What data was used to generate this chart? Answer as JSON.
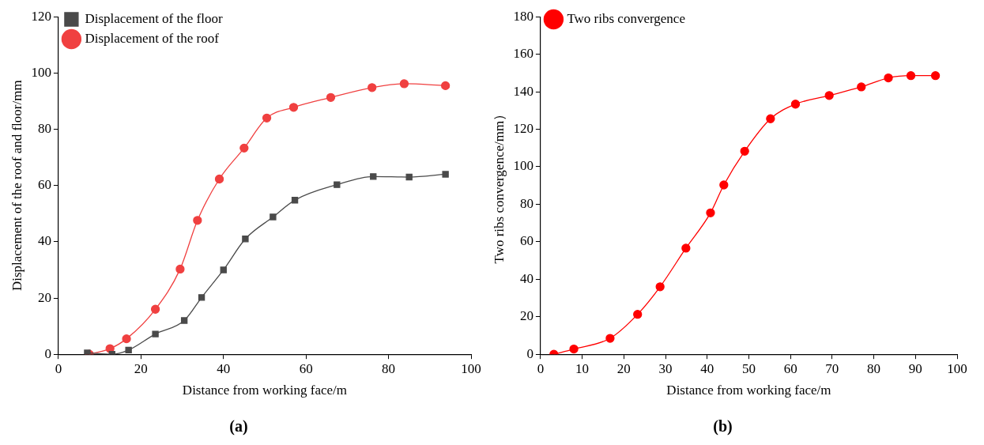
{
  "chart_data": [
    {
      "type": "line",
      "title": "(a)",
      "xlabel": "Distance from working face/m",
      "ylabel": "Displacement of the roof and floor/mm",
      "xlim": [
        0,
        100
      ],
      "xticks": [
        0,
        20,
        40,
        60,
        80,
        100
      ],
      "ylim": [
        0,
        120
      ],
      "yticks": [
        0,
        20,
        40,
        60,
        80,
        100,
        120
      ],
      "grid": false,
      "legend": "top left",
      "series": [
        {
          "name": "Displacement of the floor",
          "color": "#4a4a4a",
          "marker": "square",
          "x": [
            7,
            13,
            17,
            23.5,
            30.5,
            34.7,
            40,
            45.3,
            52,
            57.3,
            67.5,
            76.3,
            85,
            93.8
          ],
          "values": [
            0.5,
            0,
            1.5,
            7.2,
            12,
            20.2,
            30,
            41,
            48.8,
            54.8,
            60.3,
            63.2,
            63,
            64
          ]
        },
        {
          "name": "Displacement of the roof",
          "color": "#f04040",
          "marker": "circle",
          "x": [
            7.5,
            12.5,
            16.5,
            23.5,
            29.5,
            33.7,
            39,
            45,
            50.5,
            57,
            66,
            76,
            83.8,
            93.8
          ],
          "values": [
            0,
            2,
            5.5,
            16,
            30.3,
            47.6,
            62.3,
            73.3,
            84,
            87.8,
            91.3,
            94.8,
            96.2,
            95.5
          ]
        }
      ]
    },
    {
      "type": "line",
      "title": "(b)",
      "xlabel": "Distance from working face/m",
      "ylabel": "Two ribs convergence/mm）",
      "xlim": [
        0,
        100
      ],
      "xticks": [
        0,
        10,
        20,
        30,
        40,
        50,
        60,
        70,
        80,
        90,
        100
      ],
      "ylim": [
        0,
        180
      ],
      "yticks": [
        0,
        20,
        40,
        60,
        80,
        100,
        120,
        140,
        160,
        180
      ],
      "grid": false,
      "legend": "top left",
      "series": [
        {
          "name": "Two ribs convergence",
          "color": "#ff0000",
          "marker": "circle",
          "x": [
            3.2,
            8,
            16.7,
            23.3,
            28.7,
            34.9,
            40.8,
            44,
            49,
            55.2,
            61.2,
            69.3,
            77,
            83.5,
            88.9,
            94.8
          ],
          "values": [
            0,
            2.8,
            8.5,
            21.3,
            36,
            56.6,
            75.4,
            90.3,
            108.3,
            125.6,
            133.4,
            138,
            142.6,
            147.4,
            148.6,
            148.6
          ]
        }
      ]
    }
  ]
}
